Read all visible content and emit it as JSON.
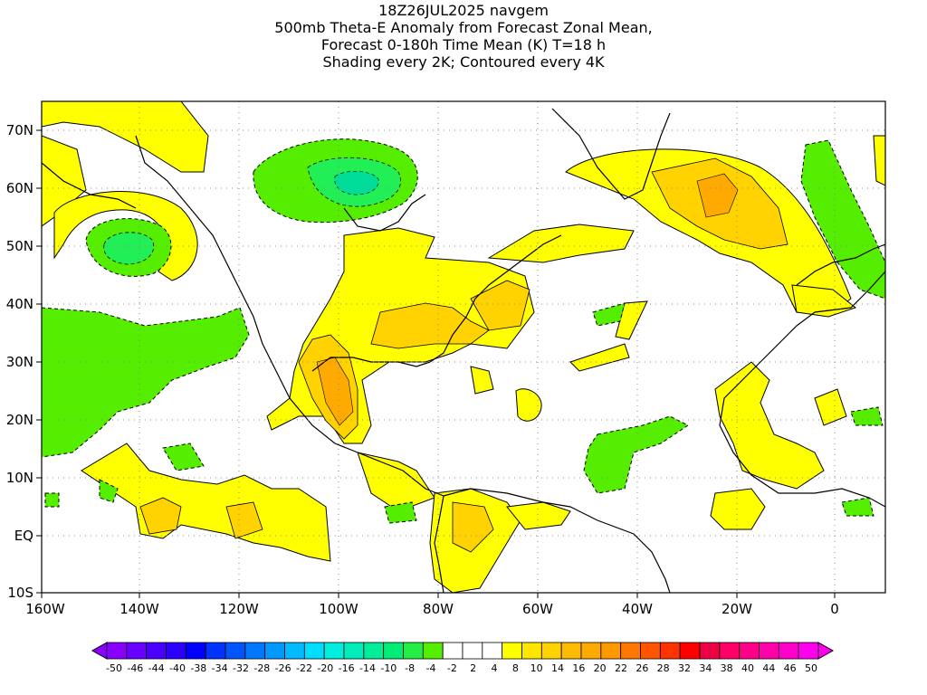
{
  "header": {
    "line1": "18Z26JUL2025 navgem",
    "line2": "500mb Theta-E Anomaly from Forecast Zonal Mean,",
    "line3": "Forecast 0-180h Time Mean (K) T=18 h",
    "line4": "Shading every 2K; Contoured every 4K"
  },
  "map": {
    "lat_labels": [
      "70N",
      "60N",
      "50N",
      "40N",
      "30N",
      "20N",
      "10N",
      "EQ",
      "10S"
    ],
    "lon_labels": [
      "160W",
      "140W",
      "120W",
      "100W",
      "80W",
      "60W",
      "40W",
      "20W",
      "0"
    ],
    "colors": {
      "pos_4_8": "#ffff00",
      "pos_8_12": "#ffd200",
      "pos_12_16": "#ffaa00",
      "neg_4_8": "#55ee00",
      "neg_8_12": "#22ee55",
      "neg_12_16": "#00dd99",
      "land_outline": "#000000",
      "grid": "#888888"
    }
  },
  "colorbar": {
    "labels": [
      "-50",
      "-46",
      "-44",
      "-40",
      "-38",
      "-34",
      "-32",
      "-28",
      "-26",
      "-22",
      "-20",
      "-16",
      "-14",
      "-10",
      "-8",
      "-4",
      "-2",
      "2",
      "4",
      "8",
      "10",
      "14",
      "16",
      "20",
      "22",
      "26",
      "28",
      "32",
      "34",
      "38",
      "40",
      "44",
      "46",
      "50"
    ],
    "colors": [
      "#8800ff",
      "#6a00ff",
      "#4a00ff",
      "#2a00ff",
      "#0000ff",
      "#0033ff",
      "#0055ff",
      "#0077ff",
      "#0099ff",
      "#00bbff",
      "#00ddff",
      "#00eedd",
      "#00eebb",
      "#00ee99",
      "#00ee77",
      "#22ee44",
      "#55ee00",
      "#ffffff",
      "#ffffff",
      "#ffffff",
      "#ffff00",
      "#ffe600",
      "#ffd200",
      "#ffbb00",
      "#ffaa00",
      "#ff9900",
      "#ff7700",
      "#ff5500",
      "#ff3300",
      "#ff0000",
      "#ee0044",
      "#ff0066",
      "#ff0088",
      "#ff00aa",
      "#ff00cc",
      "#ff00ee"
    ]
  }
}
